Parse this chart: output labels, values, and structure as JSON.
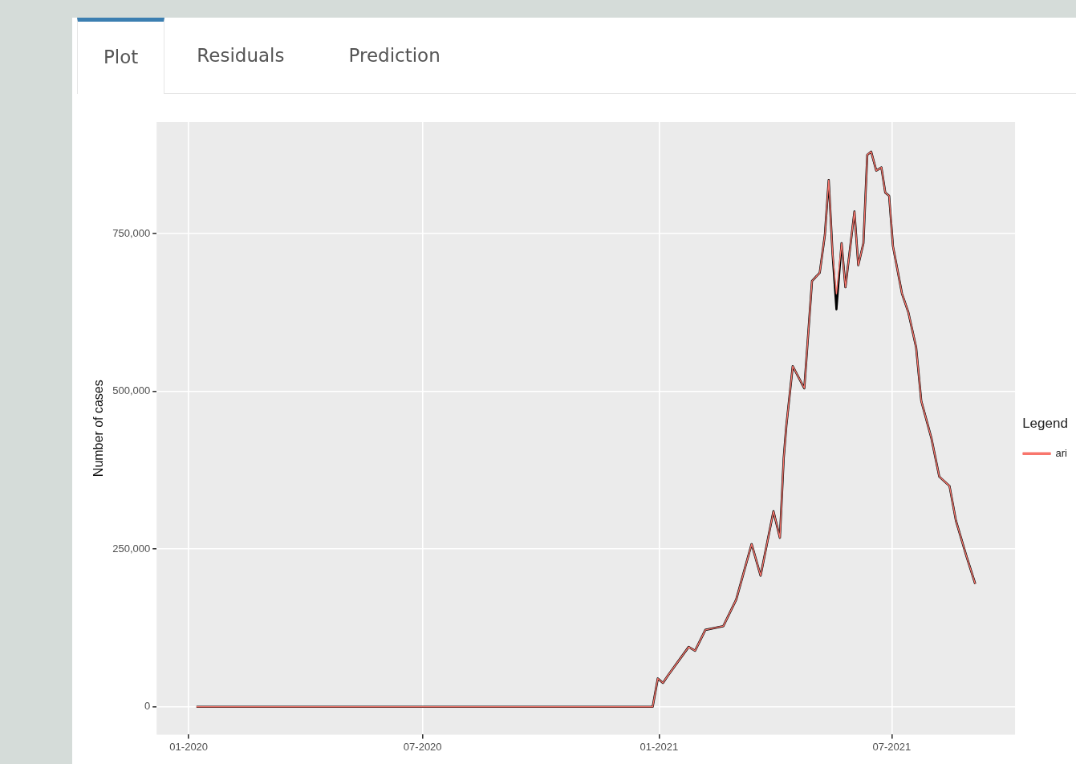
{
  "chart_data": {
    "type": "line",
    "ylabel": "Number of cases",
    "legend_title": "Legend",
    "legend": "right",
    "grid": true,
    "line_style": "solid",
    "marker": "none",
    "annotations": [
      "Plot",
      "Residuals",
      "Prediction"
    ],
    "xlim": [
      "2019-12-07",
      "2021-10-05"
    ],
    "xticks": [
      {
        "value": "2020-01-01",
        "label": "01-2020"
      },
      {
        "value": "2020-07-01",
        "label": "07-2020"
      },
      {
        "value": "2021-01-01",
        "label": "01-2021"
      },
      {
        "value": "2021-07-01",
        "label": "07-2021"
      }
    ],
    "ylim": [
      -44000,
      927000
    ],
    "yticks": [
      0,
      {
        "value": 250000,
        "label": "250,000"
      },
      {
        "value": 500000,
        "label": "500,000"
      },
      {
        "value": 750000,
        "label": "750,000"
      }
    ],
    "x": [
      "2020-01-07",
      "2020-12-27",
      "2020-12-31",
      "2021-01-04",
      "2021-01-08",
      "2021-01-24",
      "2021-01-29",
      "2021-02-06",
      "2021-02-20",
      "2021-03-02",
      "2021-03-14",
      "2021-03-21",
      "2021-03-31",
      "2021-04-05",
      "2021-04-08",
      "2021-04-10",
      "2021-04-15",
      "2021-04-24",
      "2021-04-30",
      "2021-05-06",
      "2021-05-10",
      "2021-05-13",
      "2021-05-16",
      "2021-05-19",
      "2021-05-23",
      "2021-05-26",
      "2021-06-02",
      "2021-06-05",
      "2021-06-09",
      "2021-06-12",
      "2021-06-15",
      "2021-06-19",
      "2021-06-23",
      "2021-06-26",
      "2021-06-29",
      "2021-07-02",
      "2021-07-09",
      "2021-07-14",
      "2021-07-20",
      "2021-07-24",
      "2021-08-01",
      "2021-08-07",
      "2021-08-15",
      "2021-08-20",
      "2021-08-28",
      "2021-09-04"
    ],
    "series": [
      {
        "color": "#000000",
        "values": [
          0,
          0,
          45000,
          38000,
          50000,
          95000,
          89000,
          122000,
          128000,
          170000,
          258000,
          208000,
          310000,
          268000,
          395000,
          445000,
          540000,
          505000,
          675000,
          688000,
          748000,
          835000,
          718000,
          630000,
          735000,
          665000,
          785000,
          700000,
          735000,
          875000,
          880000,
          850000,
          855000,
          815000,
          810000,
          730000,
          655000,
          625000,
          570000,
          485000,
          425000,
          365000,
          350000,
          295000,
          240000,
          195000
        ]
      },
      {
        "name": "ari",
        "color": "#f8766d",
        "values": [
          0,
          0,
          45000,
          38000,
          50000,
          95000,
          89000,
          122000,
          128000,
          170000,
          258000,
          208000,
          310000,
          268000,
          395000,
          445000,
          540000,
          505000,
          675000,
          688000,
          748000,
          835000,
          718000,
          655000,
          735000,
          665000,
          785000,
          700000,
          735000,
          875000,
          880000,
          850000,
          855000,
          815000,
          810000,
          730000,
          655000,
          625000,
          570000,
          485000,
          425000,
          365000,
          350000,
          295000,
          240000,
          195000
        ]
      }
    ]
  }
}
